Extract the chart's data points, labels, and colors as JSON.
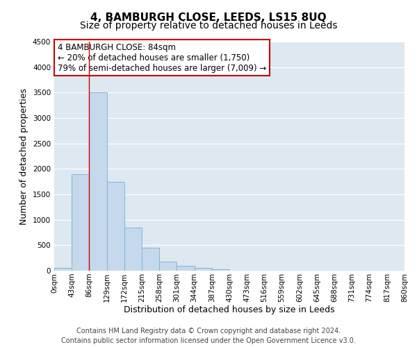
{
  "title": "4, BAMBURGH CLOSE, LEEDS, LS15 8UQ",
  "subtitle": "Size of property relative to detached houses in Leeds",
  "xlabel": "Distribution of detached houses by size in Leeds",
  "ylabel": "Number of detached properties",
  "bar_values": [
    50,
    1900,
    3500,
    1750,
    850,
    450,
    175,
    100,
    55,
    30,
    0,
    0,
    0,
    0,
    0,
    0,
    0,
    0,
    0,
    0
  ],
  "bin_labels": [
    "0sqm",
    "43sqm",
    "86sqm",
    "129sqm",
    "172sqm",
    "215sqm",
    "258sqm",
    "301sqm",
    "344sqm",
    "387sqm",
    "430sqm",
    "473sqm",
    "516sqm",
    "559sqm",
    "602sqm",
    "645sqm",
    "688sqm",
    "731sqm",
    "774sqm",
    "817sqm",
    "860sqm"
  ],
  "bar_color": "#c5d8ec",
  "bar_edge_color": "#7aafd4",
  "vline_x": 2,
  "vline_color": "#cc0000",
  "ylim": [
    0,
    4500
  ],
  "yticks": [
    0,
    500,
    1000,
    1500,
    2000,
    2500,
    3000,
    3500,
    4000,
    4500
  ],
  "annotation_box_text": "4 BAMBURGH CLOSE: 84sqm\n← 20% of detached houses are smaller (1,750)\n79% of semi-detached houses are larger (7,009) →",
  "footer_line1": "Contains HM Land Registry data © Crown copyright and database right 2024.",
  "footer_line2": "Contains public sector information licensed under the Open Government Licence v3.0.",
  "bg_color": "#dde8f0",
  "fig_bg_color": "#ffffff",
  "grid_color": "#ffffff",
  "title_fontsize": 11,
  "subtitle_fontsize": 10,
  "axis_label_fontsize": 9,
  "tick_fontsize": 7.5,
  "footer_fontsize": 7,
  "ann_fontsize": 8.5
}
